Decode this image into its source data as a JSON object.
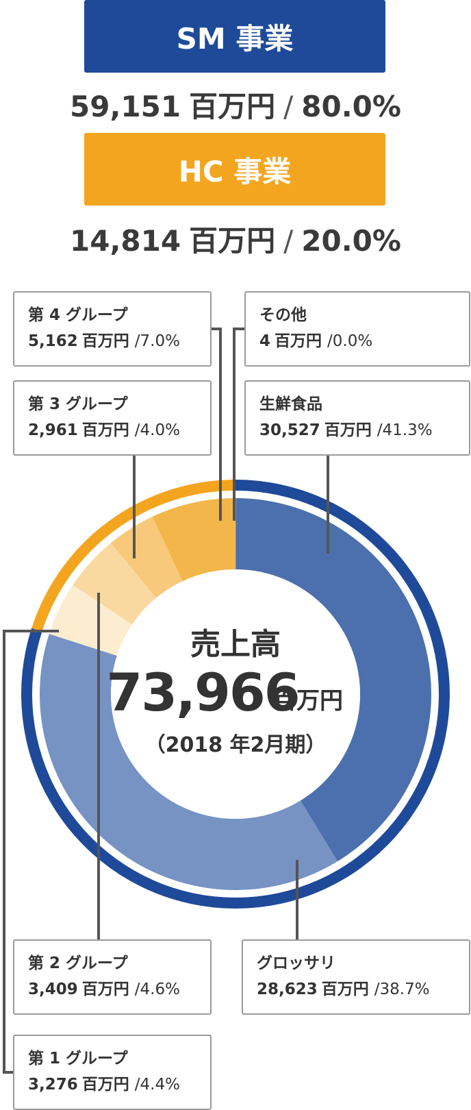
{
  "segments": [
    {
      "name": "SM 事業",
      "value": "59,151",
      "unit": "百万円",
      "percent": "80.0%",
      "color": "#1f4a99"
    },
    {
      "name": "HC 事業",
      "value": "14,814",
      "unit": "百万円",
      "percent": "20.0%",
      "color": "#f4a51f"
    }
  ],
  "center": {
    "label": "売上高",
    "total": "73,966",
    "unit": "百万円",
    "period": "（2018 年2月期）"
  },
  "colors": {
    "outer_sm": "#1f4a99",
    "outer_hc": "#f4a51f",
    "inner": [
      "#4b70ad",
      "#7693c4",
      "#fcecd0",
      "#fad9a1",
      "#f8c97a",
      "#f3b64b",
      "#f3b64b"
    ],
    "leader": "#555555"
  },
  "chart_data": {
    "type": "pie",
    "total": 73966,
    "unit": "百万円",
    "rings": [
      {
        "name": "outer",
        "slices": [
          {
            "label": "SM 事業",
            "value": 59151,
            "percent": 80.0
          },
          {
            "label": "HC 事業",
            "value": 14814,
            "percent": 20.0
          }
        ]
      },
      {
        "name": "inner",
        "slices": [
          {
            "label": "生鮮食品",
            "value": 30527,
            "percent": 41.3
          },
          {
            "label": "グロッサリ",
            "value": 28623,
            "percent": 38.7
          },
          {
            "label": "第 1 グループ",
            "value": 3276,
            "percent": 4.4
          },
          {
            "label": "第 2 グループ",
            "value": 3409,
            "percent": 4.6
          },
          {
            "label": "第 3 グループ",
            "value": 2961,
            "percent": 4.0
          },
          {
            "label": "第 4 グループ",
            "value": 5162,
            "percent": 7.0
          },
          {
            "label": "その他",
            "value": 4,
            "percent": 0.0
          }
        ]
      }
    ]
  },
  "callouts": [
    {
      "label": "第 4 グループ",
      "value": "5,162",
      "unit": "百万円",
      "percent": "/7.0%"
    },
    {
      "label": "その他",
      "value": "4",
      "unit": "百万円",
      "percent": "/0.0%"
    },
    {
      "label": "第 3 グループ",
      "value": "2,961",
      "unit": "百万円",
      "percent": "/4.0%"
    },
    {
      "label": "生鮮食品",
      "value": "30,527",
      "unit": "百万円",
      "percent": "/41.3%"
    },
    {
      "label": "第 2 グループ",
      "value": "3,409",
      "unit": "百万円",
      "percent": "/4.6%"
    },
    {
      "label": "グロッサリ",
      "value": "28,623",
      "unit": "百万円",
      "percent": "/38.7%"
    },
    {
      "label": "第 1 グループ",
      "value": "3,276",
      "unit": "百万円",
      "percent": "/4.4%"
    }
  ]
}
